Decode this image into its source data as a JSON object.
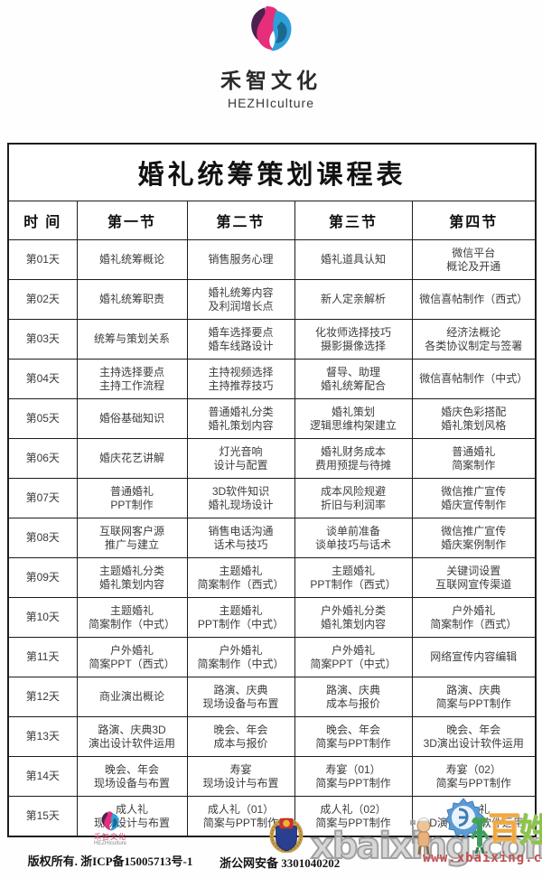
{
  "brand": {
    "name_cn": "禾智文化",
    "name_en": "HEZHIculture",
    "colors": {
      "pink": "#e62e7b",
      "dark_purple": "#4b2150",
      "blue": "#2f9fd8",
      "dark_teal": "#1a6a8f"
    }
  },
  "table": {
    "title": "婚礼统筹策划课程表",
    "columns": [
      "时  间",
      "第一节",
      "第二节",
      "第三节",
      "第四节"
    ],
    "rows": [
      {
        "day": "第01天",
        "lessons": [
          [
            "婚礼统筹概论"
          ],
          [
            "销售服务心理"
          ],
          [
            "婚礼道具认知"
          ],
          [
            "微信平台",
            "概论及开通"
          ]
        ]
      },
      {
        "day": "第02天",
        "lessons": [
          [
            "婚礼统筹职责"
          ],
          [
            "婚礼统筹内容",
            "及利润增长点"
          ],
          [
            "新人定亲解析"
          ],
          [
            "微信喜帖制作（西式）"
          ]
        ]
      },
      {
        "day": "第03天",
        "lessons": [
          [
            "统筹与策划关系"
          ],
          [
            "婚车选择要点",
            "婚车线路设计"
          ],
          [
            "化妆师选择技巧",
            "摄影摄像选择"
          ],
          [
            "经济法概论",
            "各类协议制定与签署"
          ]
        ]
      },
      {
        "day": "第04天",
        "lessons": [
          [
            "主持选择要点",
            "主持工作流程"
          ],
          [
            "主持视频选择",
            "主持推荐技巧"
          ],
          [
            "督导、助理",
            "婚礼统筹配合"
          ],
          [
            "微信喜帖制作（中式）"
          ]
        ]
      },
      {
        "day": "第05天",
        "lessons": [
          [
            "婚俗基础知识"
          ],
          [
            "普通婚礼分类",
            "婚礼策划内容"
          ],
          [
            "婚礼策划",
            "逻辑思维构架建立"
          ],
          [
            "婚庆色彩搭配",
            "婚礼策划风格"
          ]
        ]
      },
      {
        "day": "第06天",
        "lessons": [
          [
            "婚庆花艺讲解"
          ],
          [
            "灯光音响",
            "设计与配置"
          ],
          [
            "婚礼财务成本",
            "费用预提与待摊"
          ],
          [
            "普通婚礼",
            "简案制作"
          ]
        ]
      },
      {
        "day": "第07天",
        "lessons": [
          [
            "普通婚礼",
            "PPT制作"
          ],
          [
            "3D软件知识",
            "婚礼现场设计"
          ],
          [
            "成本风险规避",
            "折旧与利润率"
          ],
          [
            "微信推广宣传",
            "婚庆宣传制作"
          ]
        ]
      },
      {
        "day": "第08天",
        "lessons": [
          [
            "互联网客户源",
            "推广与建立"
          ],
          [
            "销售电话沟通",
            "话术与技巧"
          ],
          [
            "谈单前准备",
            "谈单技巧与话术"
          ],
          [
            "微信推广宣传",
            "婚庆案例制作"
          ]
        ]
      },
      {
        "day": "第09天",
        "lessons": [
          [
            "主题婚礼分类",
            "婚礼策划内容"
          ],
          [
            "主题婚礼",
            "简案制作（西式）"
          ],
          [
            "主题婚礼",
            "PPT制作（西式）"
          ],
          [
            "关键词设置",
            "互联网宣传渠道"
          ]
        ]
      },
      {
        "day": "第10天",
        "lessons": [
          [
            "主题婚礼",
            "简案制作（中式）"
          ],
          [
            "主题婚礼",
            "PPT制作（中式）"
          ],
          [
            "户外婚礼分类",
            "婚礼策划内容"
          ],
          [
            "户外婚礼",
            "简案制作（西式）"
          ]
        ]
      },
      {
        "day": "第11天",
        "lessons": [
          [
            "户外婚礼",
            "简案PPT（西式）"
          ],
          [
            "户外婚礼",
            "简案制作（中式）"
          ],
          [
            "户外婚礼",
            "简案PPT（中式）"
          ],
          [
            "网络宣传内容编辑"
          ]
        ]
      },
      {
        "day": "第12天",
        "lessons": [
          [
            "商业演出概论"
          ],
          [
            "路演、庆典",
            "现场设备与布置"
          ],
          [
            "路演、庆典",
            "成本与报价"
          ],
          [
            "路演、庆典",
            "简案与PPT制作"
          ]
        ]
      },
      {
        "day": "第13天",
        "lessons": [
          [
            "路演、庆典3D",
            "演出设计软件运用"
          ],
          [
            "晚会、年会",
            "成本与报价"
          ],
          [
            "晚会、年会",
            "简案与PPT制作"
          ],
          [
            "晚会、年会",
            "3D演出设计软件运用"
          ]
        ]
      },
      {
        "day": "第14天",
        "lessons": [
          [
            "晚会、年会",
            "现场设备与布置"
          ],
          [
            "寿宴",
            "现场设计与布置"
          ],
          [
            "寿宴（01）",
            "简案与PPT制作"
          ],
          [
            "寿宴（02）",
            "简案与PPT制作"
          ]
        ]
      },
      {
        "day": "第15天",
        "lessons": [
          [
            "成人礼",
            "现场设计与布置"
          ],
          [
            "成人礼（01）",
            "简案与PPT制作"
          ],
          [
            "成人礼（02）",
            "简案与PPT制作"
          ],
          [
            "成人礼",
            "3D演出设计软件运用"
          ]
        ]
      }
    ]
  },
  "footer": {
    "logo_cn": "禾智文化",
    "logo_en": "HEZHIculture",
    "copyright": "版权所有. 浙ICP备15005713号-1",
    "security_label": "浙公网安备 3301040202"
  },
  "watermark": {
    "big_text": "xbaixing.com",
    "url": "www.xbaixing.com",
    "char_bai": "百",
    "char_xing": "姓",
    "colors": {
      "outline": "#949494",
      "url_red": "#c0504d",
      "orange": "#f2a83e",
      "green": "#8bc34a"
    }
  }
}
